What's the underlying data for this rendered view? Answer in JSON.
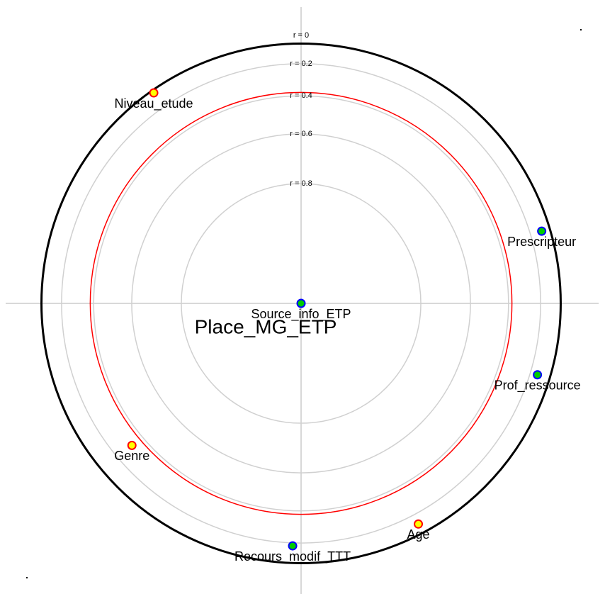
{
  "chart_data": {
    "type": "polar-correlation",
    "center_label": "Place_MG_ETP",
    "rlim": [
      0,
      1
    ],
    "rticks": [
      {
        "value": 0,
        "label": "r = 0"
      },
      {
        "value": 0.2,
        "label": "r = 0.2"
      },
      {
        "value": 0.4,
        "label": "r = 0.4"
      },
      {
        "value": 0.6,
        "label": "r = 0.6"
      },
      {
        "value": 0.8,
        "label": "r = 0.8"
      }
    ],
    "grid": true,
    "reference_circles": [
      {
        "r": 0.06,
        "color": "#000000"
      },
      {
        "r": 0.38,
        "color": "#ff0000"
      }
    ],
    "series": [
      {
        "name": "Niveau_etude",
        "angle": 125,
        "r": 0.08,
        "fill": "#ffff00",
        "stroke": "#ff0000"
      },
      {
        "name": "Prescripteur",
        "angle": 16.7,
        "r": 0.12,
        "fill": "#00cc00",
        "stroke": "#0000ff"
      },
      {
        "name": "Prof_ressource",
        "angle": -16.8,
        "r": 0.15,
        "fill": "#00cc00",
        "stroke": "#0000ff"
      },
      {
        "name": "Genre",
        "angle": 220,
        "r": 0.32,
        "fill": "#ffff00",
        "stroke": "#ff0000"
      },
      {
        "name": "Age",
        "angle": 298,
        "r": 0.13,
        "fill": "#ffff00",
        "stroke": "#ff0000"
      },
      {
        "name": "Recours_modif_TTT",
        "angle": 268,
        "r": 0.18,
        "fill": "#00cc00",
        "stroke": "#0000ff"
      },
      {
        "name": "Source_info_ETP",
        "angle": 90,
        "r": 1,
        "fill": "#00cc00",
        "stroke": "#0000ff"
      }
    ]
  }
}
